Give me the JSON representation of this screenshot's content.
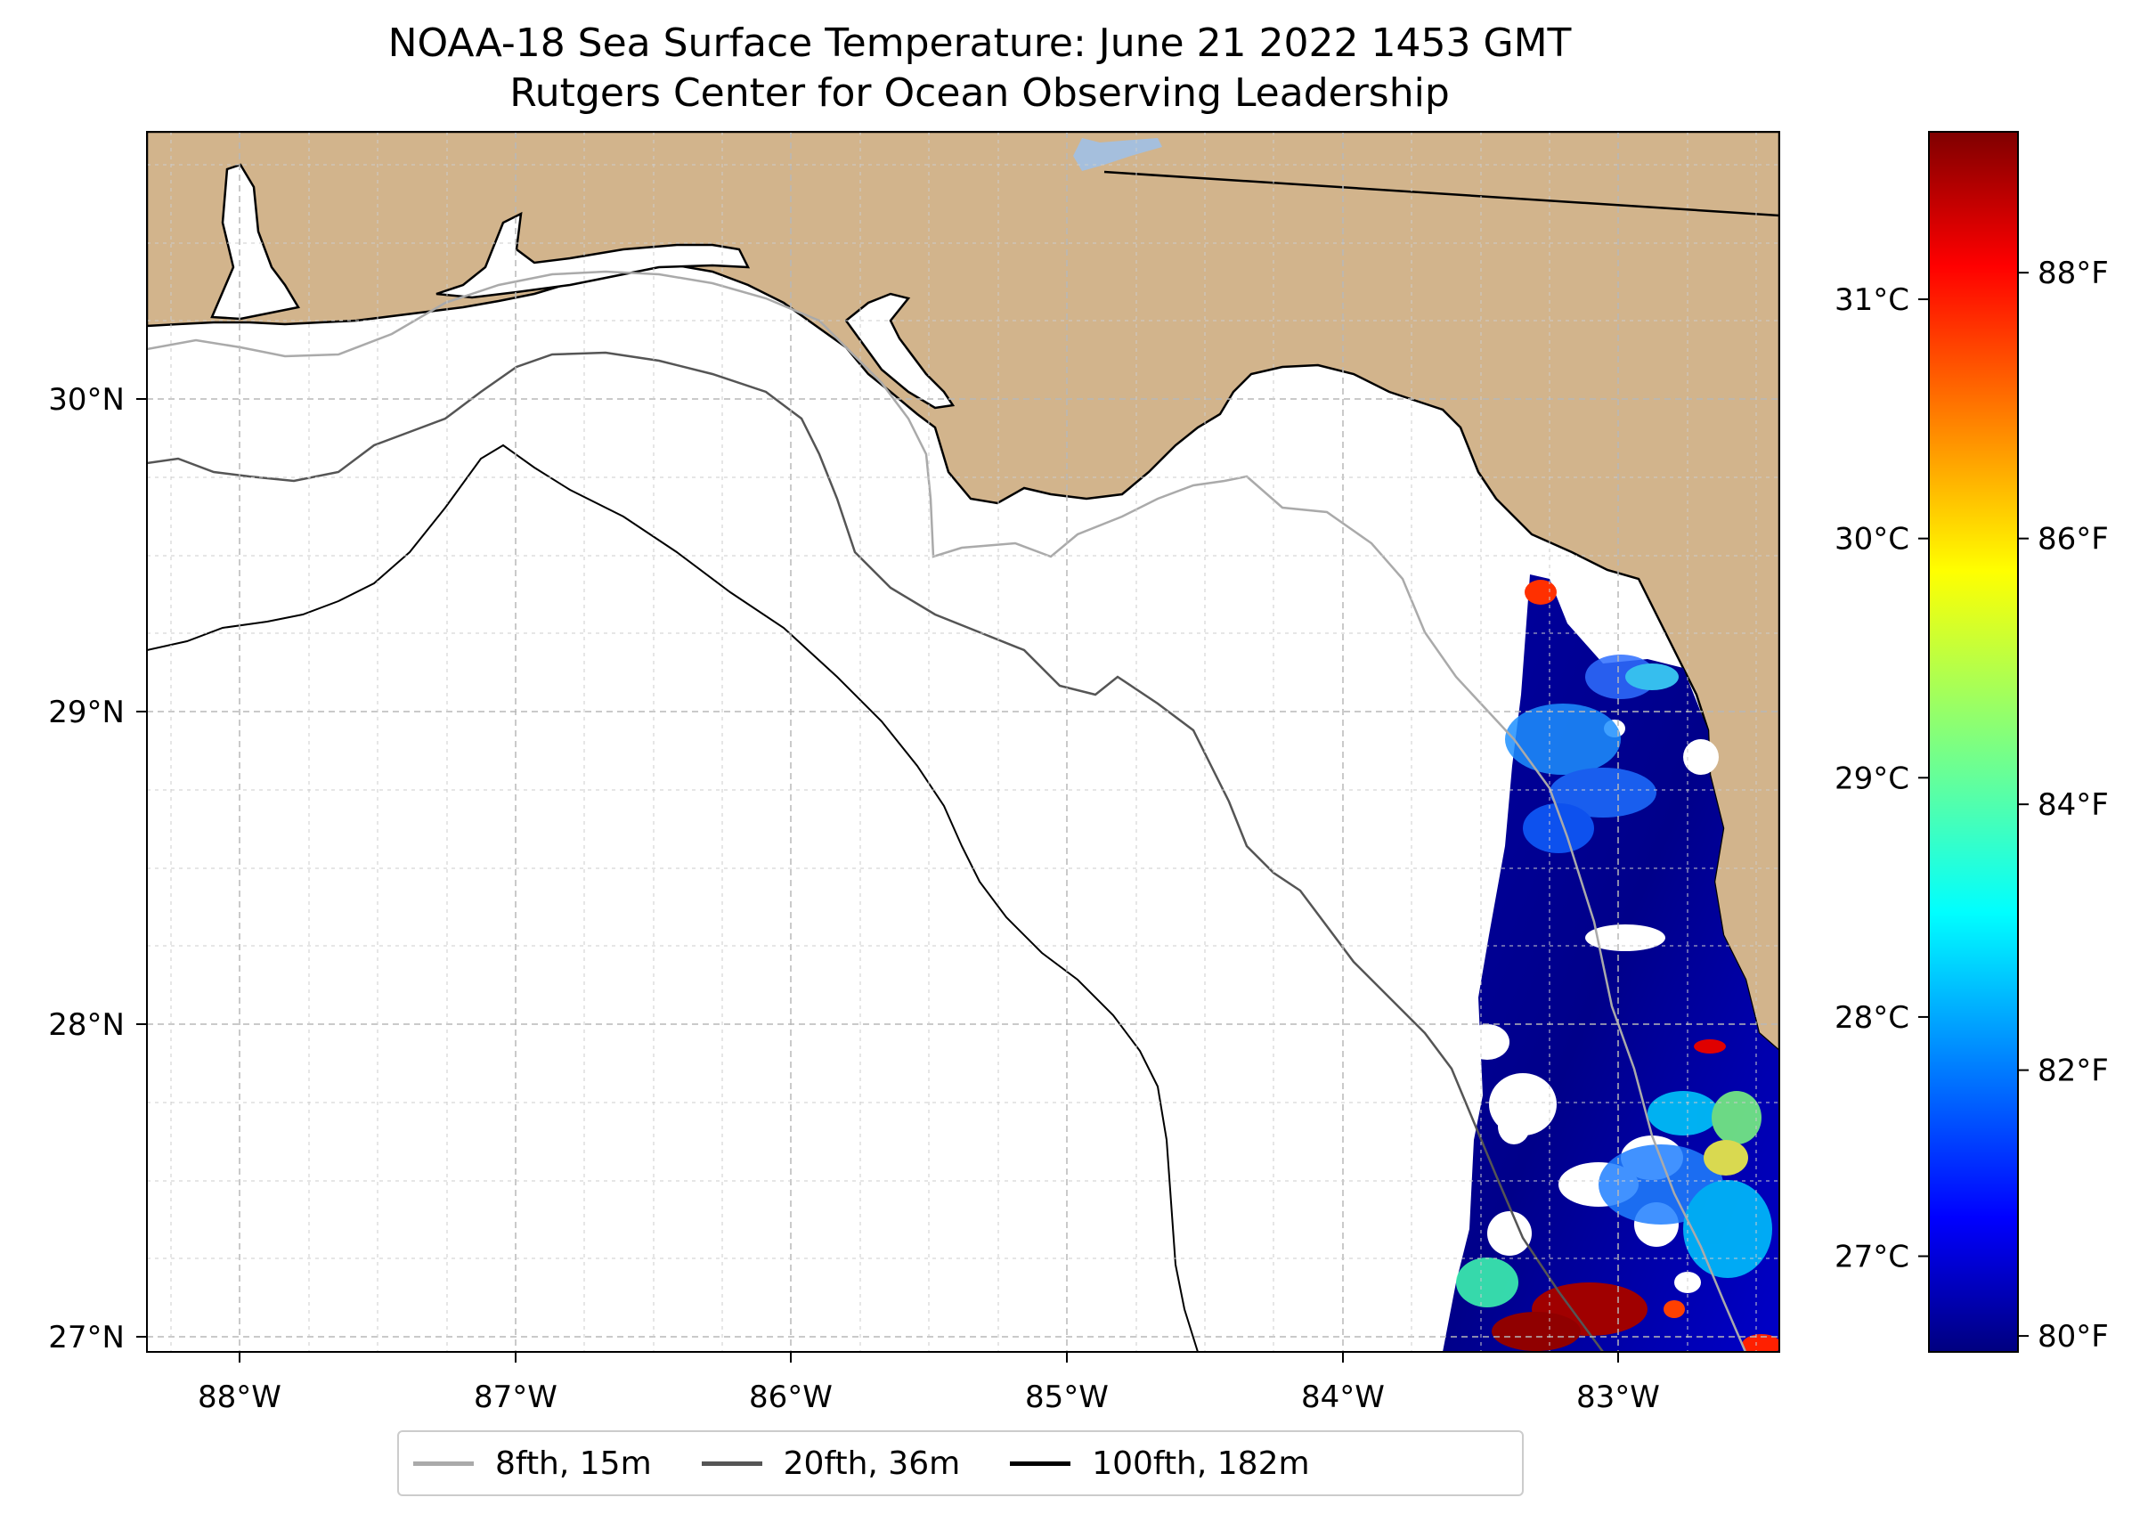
{
  "title": {
    "line1": "NOAA-18 Sea Surface Temperature: June 21 2022 1453 GMT",
    "line2": "Rutgers Center for Ocean Observing Leadership"
  },
  "map": {
    "lon_range": [
      -88.33,
      -82.42
    ],
    "lat_range": [
      26.94,
      30.85
    ],
    "lon_ticks": [
      {
        "value": -88,
        "label": "88°W"
      },
      {
        "value": -87,
        "label": "87°W"
      },
      {
        "value": -86,
        "label": "86°W"
      },
      {
        "value": -85,
        "label": "85°W"
      },
      {
        "value": -84,
        "label": "84°W"
      },
      {
        "value": -83,
        "label": "83°W"
      }
    ],
    "lat_ticks": [
      {
        "value": 30,
        "label": "30°N"
      },
      {
        "value": 29,
        "label": "29°N"
      },
      {
        "value": 28,
        "label": "28°N"
      },
      {
        "value": 27,
        "label": "27°N"
      }
    ],
    "gridlines": true,
    "land_color": "#d2b48c",
    "lake_color": "#a5bfdd"
  },
  "colorbar": {
    "range_c": [
      26.6,
      31.7
    ],
    "celsius_ticks": [
      {
        "value": 27,
        "label": "27°C"
      },
      {
        "value": 28,
        "label": "28°C"
      },
      {
        "value": 29,
        "label": "29°C"
      },
      {
        "value": 30,
        "label": "30°C"
      },
      {
        "value": 31,
        "label": "31°C"
      }
    ],
    "fahrenheit_ticks": [
      {
        "value": 80,
        "label": "80°F"
      },
      {
        "value": 82,
        "label": "82°F"
      },
      {
        "value": 84,
        "label": "84°F"
      },
      {
        "value": 86,
        "label": "86°F"
      },
      {
        "value": 88,
        "label": "88°F"
      }
    ],
    "colormap": [
      "#00007f",
      "#0000ff",
      "#007fff",
      "#00ffff",
      "#7fff7f",
      "#ffff00",
      "#ff7f00",
      "#ff0000",
      "#7f0000"
    ]
  },
  "legend": {
    "placement": "bottom-center",
    "items": [
      {
        "label": "8fth, 15m",
        "color": "#aaaaaa"
      },
      {
        "label": "20fth, 36m",
        "color": "#555555"
      },
      {
        "label": "100fth, 182m",
        "color": "#000000"
      }
    ]
  }
}
